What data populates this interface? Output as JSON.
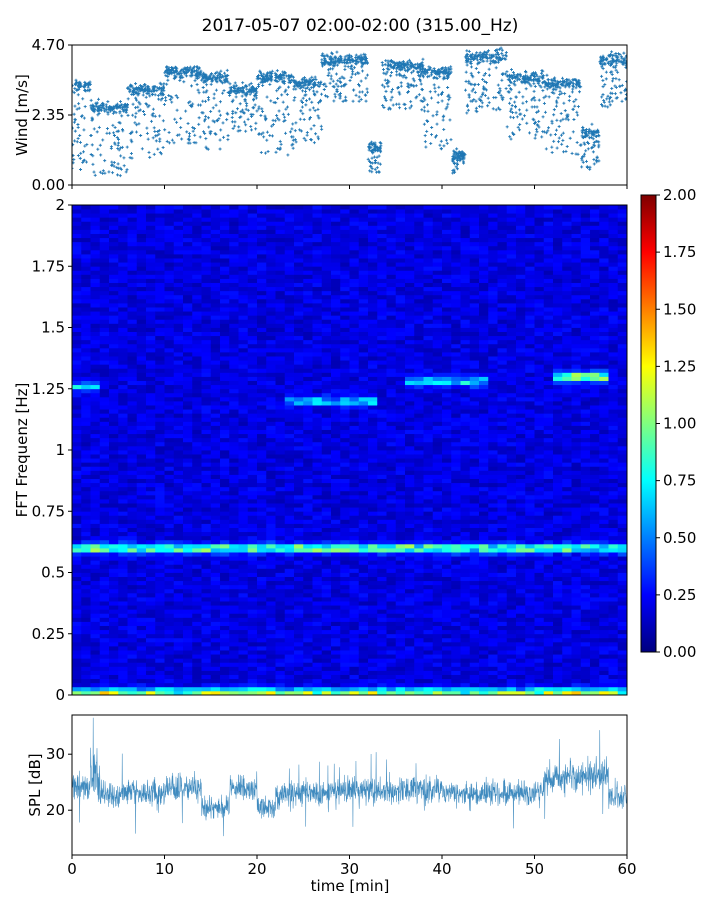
{
  "figure": {
    "title": "2017-05-07 02:00-02:00 (315.00_Hz)"
  },
  "chart_data": [
    {
      "type": "scatter",
      "ylabel": "Wind [m/s]",
      "xlabel": "",
      "xlim": [
        0,
        60
      ],
      "ylim": [
        0,
        4.7
      ],
      "yticks": [
        "0.00",
        "2.35",
        "4.70"
      ],
      "xticks": [
        0,
        10,
        20,
        30,
        40,
        50,
        60
      ],
      "color": "#1f77b4",
      "segments": [
        {
          "x0": 0.0,
          "x1": 2.0,
          "lo": 0.5,
          "hi": 3.3
        },
        {
          "x0": 2.0,
          "x1": 6.0,
          "lo": 0.3,
          "hi": 2.6
        },
        {
          "x0": 6.0,
          "x1": 10.0,
          "lo": 0.9,
          "hi": 3.2
        },
        {
          "x0": 10.0,
          "x1": 14.0,
          "lo": 1.4,
          "hi": 3.8
        },
        {
          "x0": 14.0,
          "x1": 17.0,
          "lo": 1.2,
          "hi": 3.6
        },
        {
          "x0": 17.0,
          "x1": 20.0,
          "lo": 1.8,
          "hi": 3.2
        },
        {
          "x0": 20.0,
          "x1": 24.0,
          "lo": 1.0,
          "hi": 3.6
        },
        {
          "x0": 24.0,
          "x1": 27.0,
          "lo": 1.4,
          "hi": 3.4
        },
        {
          "x0": 27.0,
          "x1": 32.0,
          "lo": 2.8,
          "hi": 4.2
        },
        {
          "x0": 32.0,
          "x1": 33.5,
          "lo": 0.4,
          "hi": 1.3
        },
        {
          "x0": 33.5,
          "x1": 38.0,
          "lo": 2.5,
          "hi": 4.0
        },
        {
          "x0": 38.0,
          "x1": 41.0,
          "lo": 1.2,
          "hi": 3.8
        },
        {
          "x0": 41.0,
          "x1": 42.5,
          "lo": 0.4,
          "hi": 1.0
        },
        {
          "x0": 42.5,
          "x1": 47.0,
          "lo": 2.4,
          "hi": 4.3
        },
        {
          "x0": 47.0,
          "x1": 51.0,
          "lo": 1.5,
          "hi": 3.6
        },
        {
          "x0": 51.0,
          "x1": 55.0,
          "lo": 1.0,
          "hi": 3.4
        },
        {
          "x0": 55.0,
          "x1": 57.0,
          "lo": 0.5,
          "hi": 1.8
        },
        {
          "x0": 57.0,
          "x1": 60.0,
          "lo": 2.6,
          "hi": 4.2
        }
      ]
    },
    {
      "type": "heatmap",
      "ylabel": "FFT Frequenz [Hz]",
      "xlabel": "",
      "xlim": [
        0,
        60
      ],
      "ylim": [
        0,
        2
      ],
      "yticks": [
        "0",
        "0.25",
        "0.5",
        "0.75",
        "1",
        "1.25",
        "1.5",
        "1.75",
        "2"
      ],
      "colorbar": {
        "min": 0,
        "max": 2,
        "ticks": [
          "0.00",
          "0.25",
          "0.50",
          "0.75",
          "1.00",
          "1.25",
          "1.50",
          "1.75",
          "2.00"
        ],
        "colormap": "jet"
      },
      "background_level": 0.2,
      "bands": [
        {
          "x0": 0,
          "x1": 60,
          "f": 0.6,
          "amp": 0.8
        },
        {
          "x0": 0,
          "x1": 60,
          "f": 0.01,
          "amp": 0.9
        },
        {
          "x0": 52,
          "x1": 58,
          "f": 1.3,
          "amp": 0.9
        },
        {
          "x0": 23,
          "x1": 33,
          "f": 1.2,
          "amp": 0.5
        },
        {
          "x0": 36,
          "x1": 45,
          "f": 1.28,
          "amp": 0.5
        },
        {
          "x0": 0,
          "x1": 3,
          "f": 1.26,
          "amp": 0.5
        }
      ]
    },
    {
      "type": "line",
      "ylabel": "SPL [dB]",
      "xlabel": "time [min]",
      "xlim": [
        0,
        60
      ],
      "ylim": [
        12,
        37
      ],
      "yticks": [
        20,
        30
      ],
      "xticks": [
        "0",
        "10",
        "20",
        "30",
        "40",
        "50",
        "60"
      ],
      "color": "#1f77b4",
      "segments": [
        {
          "x0": 0,
          "x1": 2,
          "center": 24.5,
          "spread": 4.5
        },
        {
          "x0": 2,
          "x1": 3,
          "center": 26.0,
          "spread": 7.0
        },
        {
          "x0": 3,
          "x1": 10,
          "center": 23.0,
          "spread": 4.0
        },
        {
          "x0": 10,
          "x1": 14,
          "center": 24.0,
          "spread": 4.0
        },
        {
          "x0": 14,
          "x1": 17,
          "center": 20.5,
          "spread": 3.5
        },
        {
          "x0": 17,
          "x1": 20,
          "center": 24.0,
          "spread": 4.0
        },
        {
          "x0": 20,
          "x1": 22,
          "center": 20.5,
          "spread": 3.5
        },
        {
          "x0": 22,
          "x1": 30,
          "center": 23.0,
          "spread": 4.0
        },
        {
          "x0": 30,
          "x1": 40,
          "center": 23.5,
          "spread": 4.0
        },
        {
          "x0": 40,
          "x1": 51,
          "center": 23.0,
          "spread": 4.0
        },
        {
          "x0": 51,
          "x1": 58,
          "center": 26.0,
          "spread": 5.0
        },
        {
          "x0": 58,
          "x1": 60,
          "center": 22.5,
          "spread": 4.0
        }
      ]
    }
  ]
}
